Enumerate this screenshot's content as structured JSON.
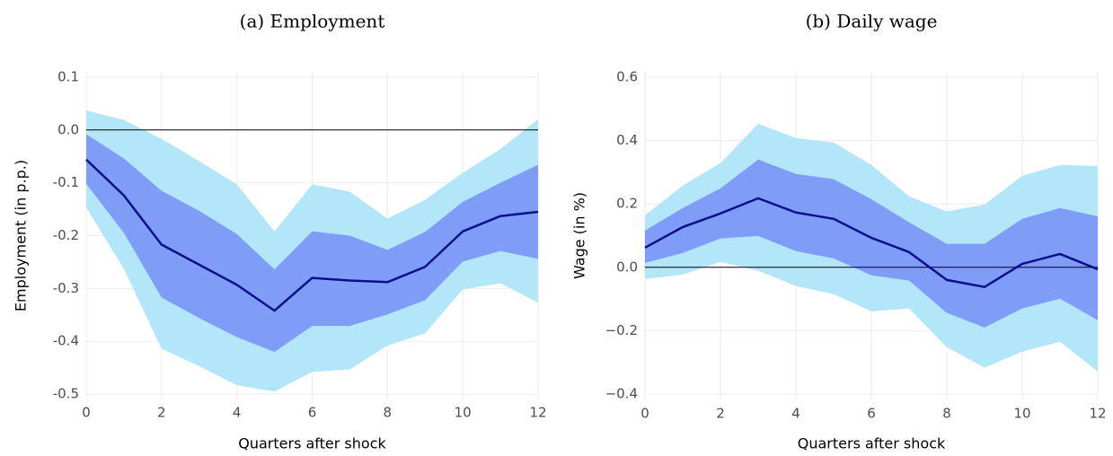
{
  "chart_data": [
    {
      "type": "line",
      "title": "(a) Employment",
      "xlabel": "Quarters after shock",
      "ylabel": "Employment (in p.p.)",
      "x": [
        0,
        1,
        2,
        3,
        4,
        5,
        6,
        7,
        8,
        9,
        10,
        11,
        12
      ],
      "xlim": [
        0,
        12
      ],
      "xticks": [
        0,
        2,
        4,
        6,
        8,
        10,
        12
      ],
      "ylim": [
        -0.51,
        0.11
      ],
      "yticks": [
        -0.5,
        -0.4,
        -0.3,
        -0.2,
        -0.1,
        {
          "value": 0,
          "label": "0.0"
        },
        0.1
      ],
      "grid": true,
      "reference_line": 0,
      "bands": [
        {
          "color": "#b3e6f8",
          "upper": [
            0.037,
            0.019,
            -0.017,
            -0.059,
            -0.103,
            -0.192,
            -0.103,
            -0.117,
            -0.168,
            -0.132,
            -0.081,
            -0.036,
            0.02
          ],
          "lower": [
            -0.147,
            -0.263,
            -0.414,
            -0.447,
            -0.483,
            -0.495,
            -0.458,
            -0.453,
            -0.408,
            -0.385,
            -0.302,
            -0.29,
            -0.327
          ]
        },
        {
          "color": "#7f9df7",
          "upper": [
            -0.008,
            -0.054,
            -0.115,
            -0.153,
            -0.197,
            -0.264,
            -0.192,
            -0.2,
            -0.227,
            -0.193,
            -0.136,
            -0.1,
            -0.066
          ],
          "lower": [
            -0.102,
            -0.195,
            -0.317,
            -0.356,
            -0.392,
            -0.42,
            -0.371,
            -0.371,
            -0.349,
            -0.322,
            -0.249,
            -0.229,
            -0.244
          ]
        }
      ],
      "series": [
        {
          "color": "#0a0f8c",
          "values": [
            -0.056,
            -0.124,
            -0.217,
            -0.255,
            -0.293,
            -0.342,
            -0.28,
            -0.285,
            -0.288,
            -0.259,
            -0.192,
            -0.163,
            -0.155
          ]
        }
      ]
    },
    {
      "type": "line",
      "title": "(b) Daily wage",
      "xlabel": "Quarters after shock",
      "ylabel": "Wage (in %)",
      "x": [
        0,
        1,
        2,
        3,
        4,
        5,
        6,
        7,
        8,
        9,
        10,
        11,
        12
      ],
      "xlim": [
        0,
        12
      ],
      "xticks": [
        0,
        2,
        4,
        6,
        8,
        10,
        12
      ],
      "ylim": [
        -0.42,
        0.62
      ],
      "yticks": [
        {
          "value": -0.4,
          "label": "−0.4"
        },
        {
          "value": -0.2,
          "label": "−0.2"
        },
        {
          "value": 0,
          "label": "0.0"
        },
        0.2,
        0.4,
        0.6
      ],
      "grid": true,
      "reference_line": 0,
      "bands": [
        {
          "color": "#b3e6f8",
          "upper": [
            0.164,
            0.258,
            0.329,
            0.453,
            0.408,
            0.394,
            0.323,
            0.224,
            0.176,
            0.198,
            0.289,
            0.323,
            0.32
          ],
          "lower": [
            -0.037,
            -0.023,
            0.017,
            -0.011,
            -0.059,
            -0.085,
            -0.139,
            -0.13,
            -0.252,
            -0.317,
            -0.266,
            -0.235,
            -0.329
          ]
        },
        {
          "color": "#7f9df7",
          "upper": [
            0.116,
            0.187,
            0.249,
            0.34,
            0.295,
            0.278,
            0.215,
            0.142,
            0.074,
            0.074,
            0.153,
            0.187,
            0.161
          ],
          "lower": [
            0.014,
            0.045,
            0.091,
            0.099,
            0.051,
            0.028,
            -0.025,
            -0.042,
            -0.144,
            -0.19,
            -0.13,
            -0.099,
            -0.167
          ]
        }
      ],
      "series": [
        {
          "color": "#0a0f8c",
          "values": [
            0.062,
            0.127,
            0.17,
            0.218,
            0.173,
            0.153,
            0.093,
            0.048,
            -0.04,
            -0.062,
            0.011,
            0.042,
            -0.006
          ]
        }
      ]
    }
  ]
}
